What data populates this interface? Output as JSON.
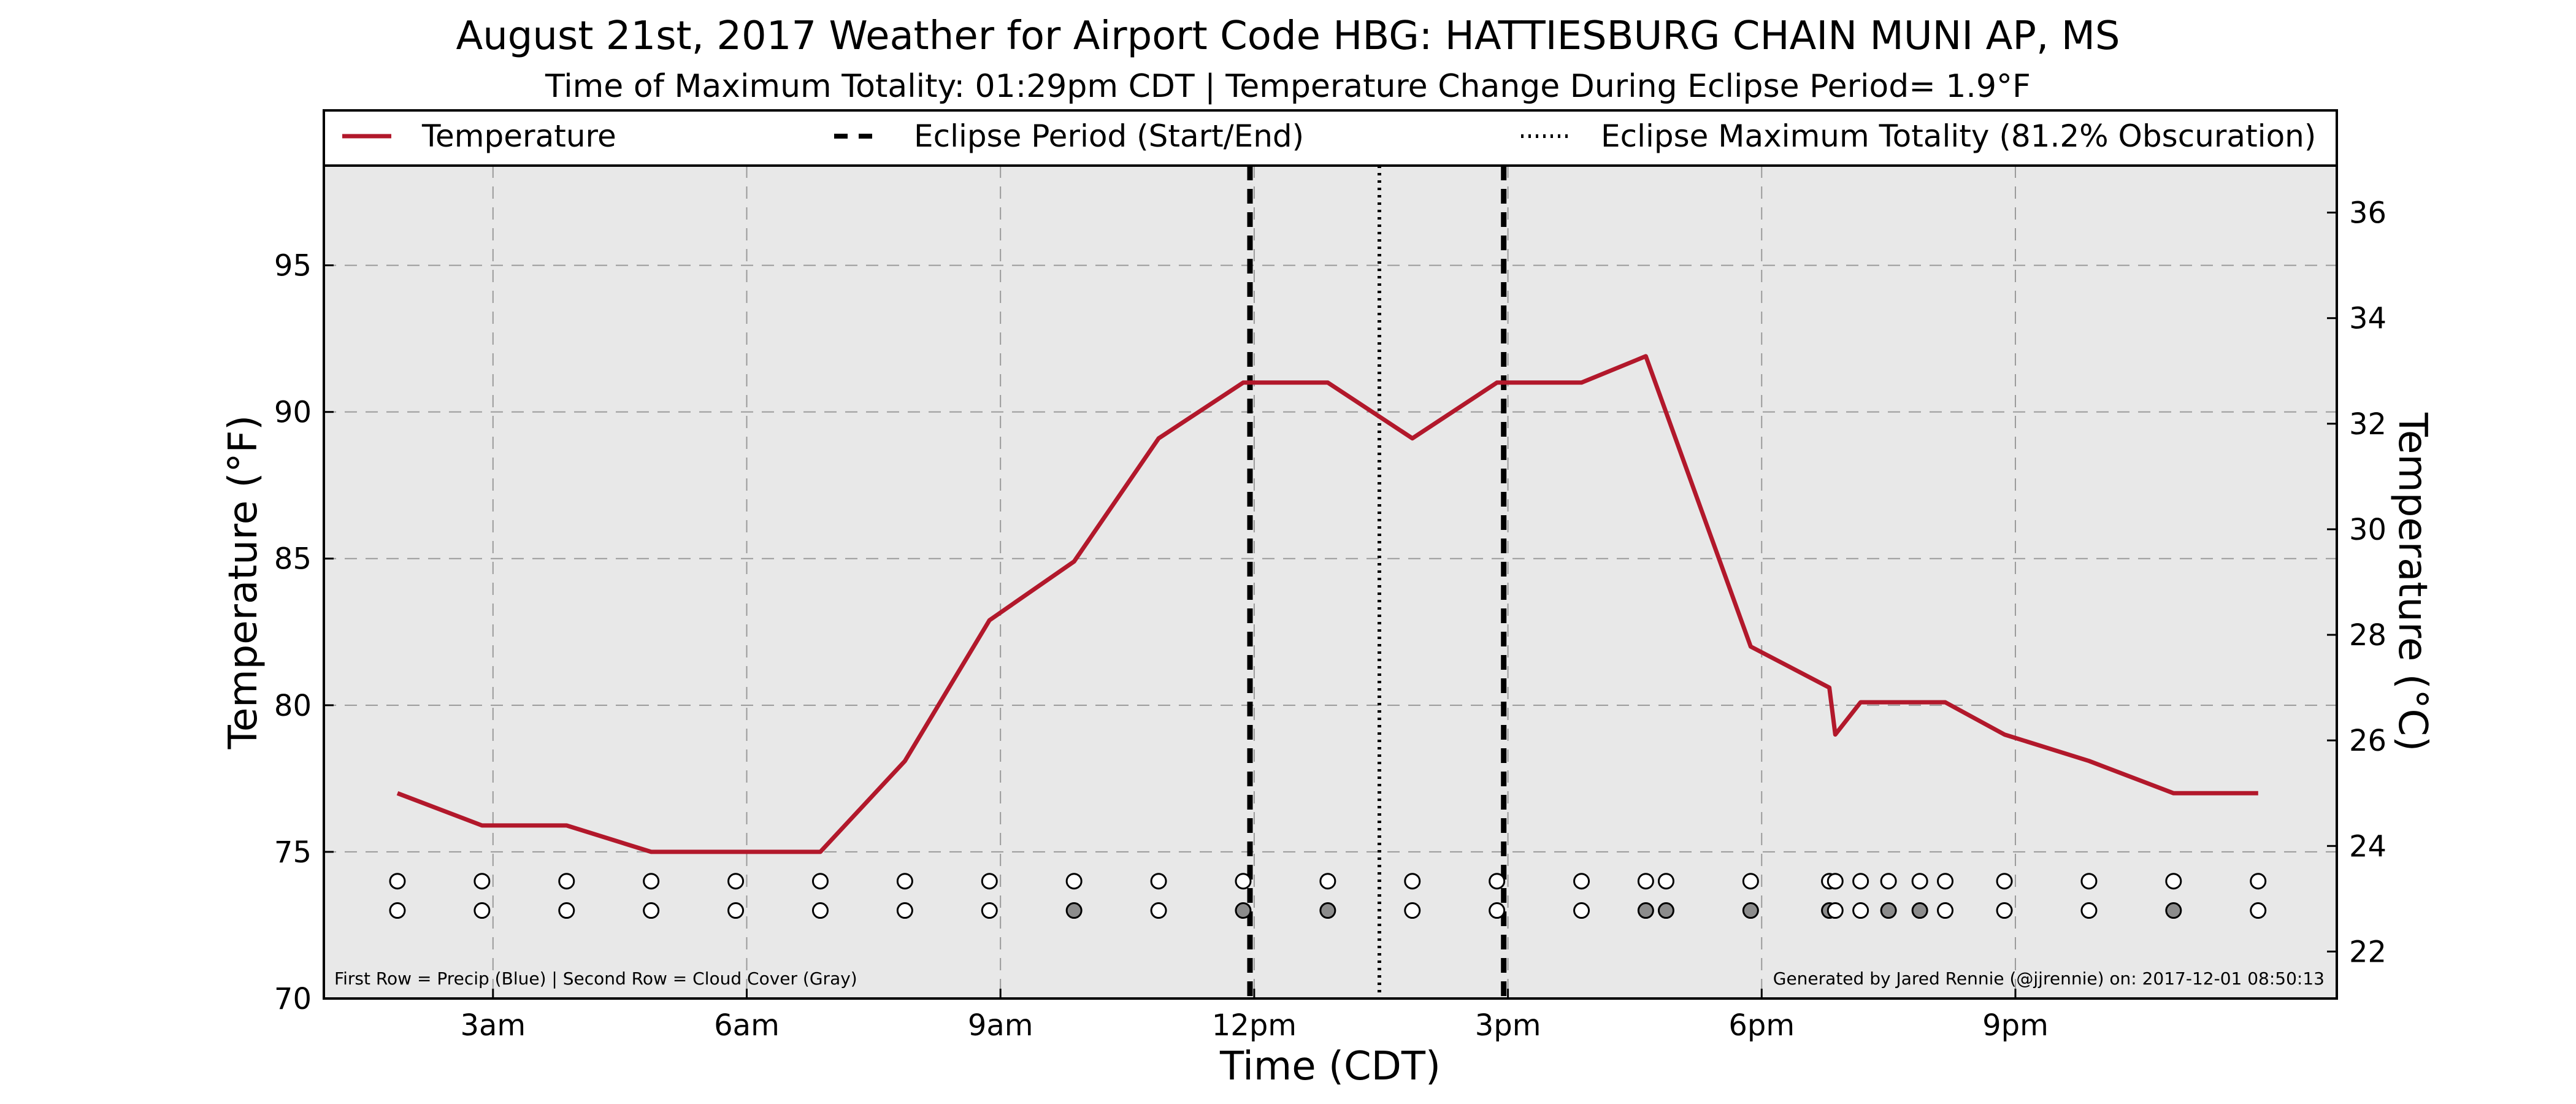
{
  "chart_data": {
    "type": "line",
    "title": "August 21st, 2017 Weather for Airport Code HBG: HATTIESBURG CHAIN MUNI AP, MS",
    "subtitle": "Time of Maximum Totality: 01:29pm CDT | Temperature Change During Eclipse Period= 1.9°F",
    "xlabel": "Time (CDT)",
    "ylabel": "Temperature (°F)",
    "ylabel_right": "Temperature (°C)",
    "xlim": [
      1.0,
      24.8
    ],
    "ylim": [
      70,
      98.4
    ],
    "ylim_right": [
      21.11,
      36.89
    ],
    "x_ticks": [
      {
        "value": 3,
        "label": "3am"
      },
      {
        "value": 6,
        "label": "6am"
      },
      {
        "value": 9,
        "label": "9am"
      },
      {
        "value": 12,
        "label": "12pm"
      },
      {
        "value": 15,
        "label": "3pm"
      },
      {
        "value": 18,
        "label": "6pm"
      },
      {
        "value": 21,
        "label": "9pm"
      }
    ],
    "y_ticks": [
      70,
      75,
      80,
      85,
      90,
      95
    ],
    "y_ticks_right": [
      22,
      24,
      26,
      28,
      30,
      32,
      34,
      36
    ],
    "grid": true,
    "legend_position": "top",
    "legend": [
      {
        "label": "Temperature",
        "style": "solid"
      },
      {
        "label": "Eclipse Period (Start/End)",
        "style": "dashed"
      },
      {
        "label": "Eclipse Maximum Totality (81.2% Obscuration)",
        "style": "dotted"
      }
    ],
    "series": [
      {
        "name": "Temperature",
        "color": "#b2182b",
        "x": [
          1.87,
          2.87,
          3.87,
          4.87,
          5.87,
          6.87,
          7.87,
          8.87,
          9.87,
          10.87,
          11.87,
          12.87,
          13.87,
          14.87,
          15.87,
          16.63,
          17.87,
          18.8,
          18.87,
          19.17,
          19.5,
          19.87,
          20.17,
          20.87,
          21.87,
          22.87,
          23.87
        ],
        "y": [
          77.0,
          75.9,
          75.9,
          75.0,
          75.0,
          75.0,
          78.1,
          82.9,
          84.9,
          89.1,
          91.0,
          91.0,
          89.1,
          91.0,
          91.0,
          91.9,
          82.0,
          80.6,
          79.0,
          80.1,
          80.1,
          80.1,
          80.1,
          79.0,
          78.1,
          77.0,
          77.0
        ]
      }
    ],
    "eclipse_start": 11.95,
    "eclipse_end": 14.95,
    "eclipse_max": 13.48,
    "markers": {
      "precip_row_y": 74.0,
      "cloud_row_y": 73.0,
      "x": [
        1.87,
        2.87,
        3.87,
        4.87,
        5.87,
        6.87,
        7.87,
        8.87,
        9.87,
        10.87,
        11.87,
        12.87,
        13.87,
        14.87,
        15.87,
        16.63,
        16.87,
        17.87,
        18.8,
        18.87,
        19.17,
        19.5,
        19.87,
        20.17,
        20.87,
        21.87,
        22.87,
        23.87
      ],
      "precip": [
        0,
        0,
        0,
        0,
        0,
        0,
        0,
        0,
        0,
        0,
        0,
        0,
        0,
        0,
        0,
        0,
        0,
        0,
        0,
        0,
        0,
        0,
        0,
        0,
        0,
        0,
        0,
        0
      ],
      "cloud": [
        0,
        0,
        0,
        0,
        0,
        0,
        0,
        0,
        1,
        0,
        1,
        1,
        0,
        0,
        0,
        1,
        1,
        1,
        1,
        0,
        0,
        1,
        1,
        0,
        0,
        0,
        1,
        0
      ]
    },
    "footnote_left": "First Row = Precip (Blue) | Second Row = Cloud Cover (Gray)",
    "footnote_right": "Generated by Jared Rennie (@jjrennie) on: 2017-12-01 08:50:13"
  }
}
